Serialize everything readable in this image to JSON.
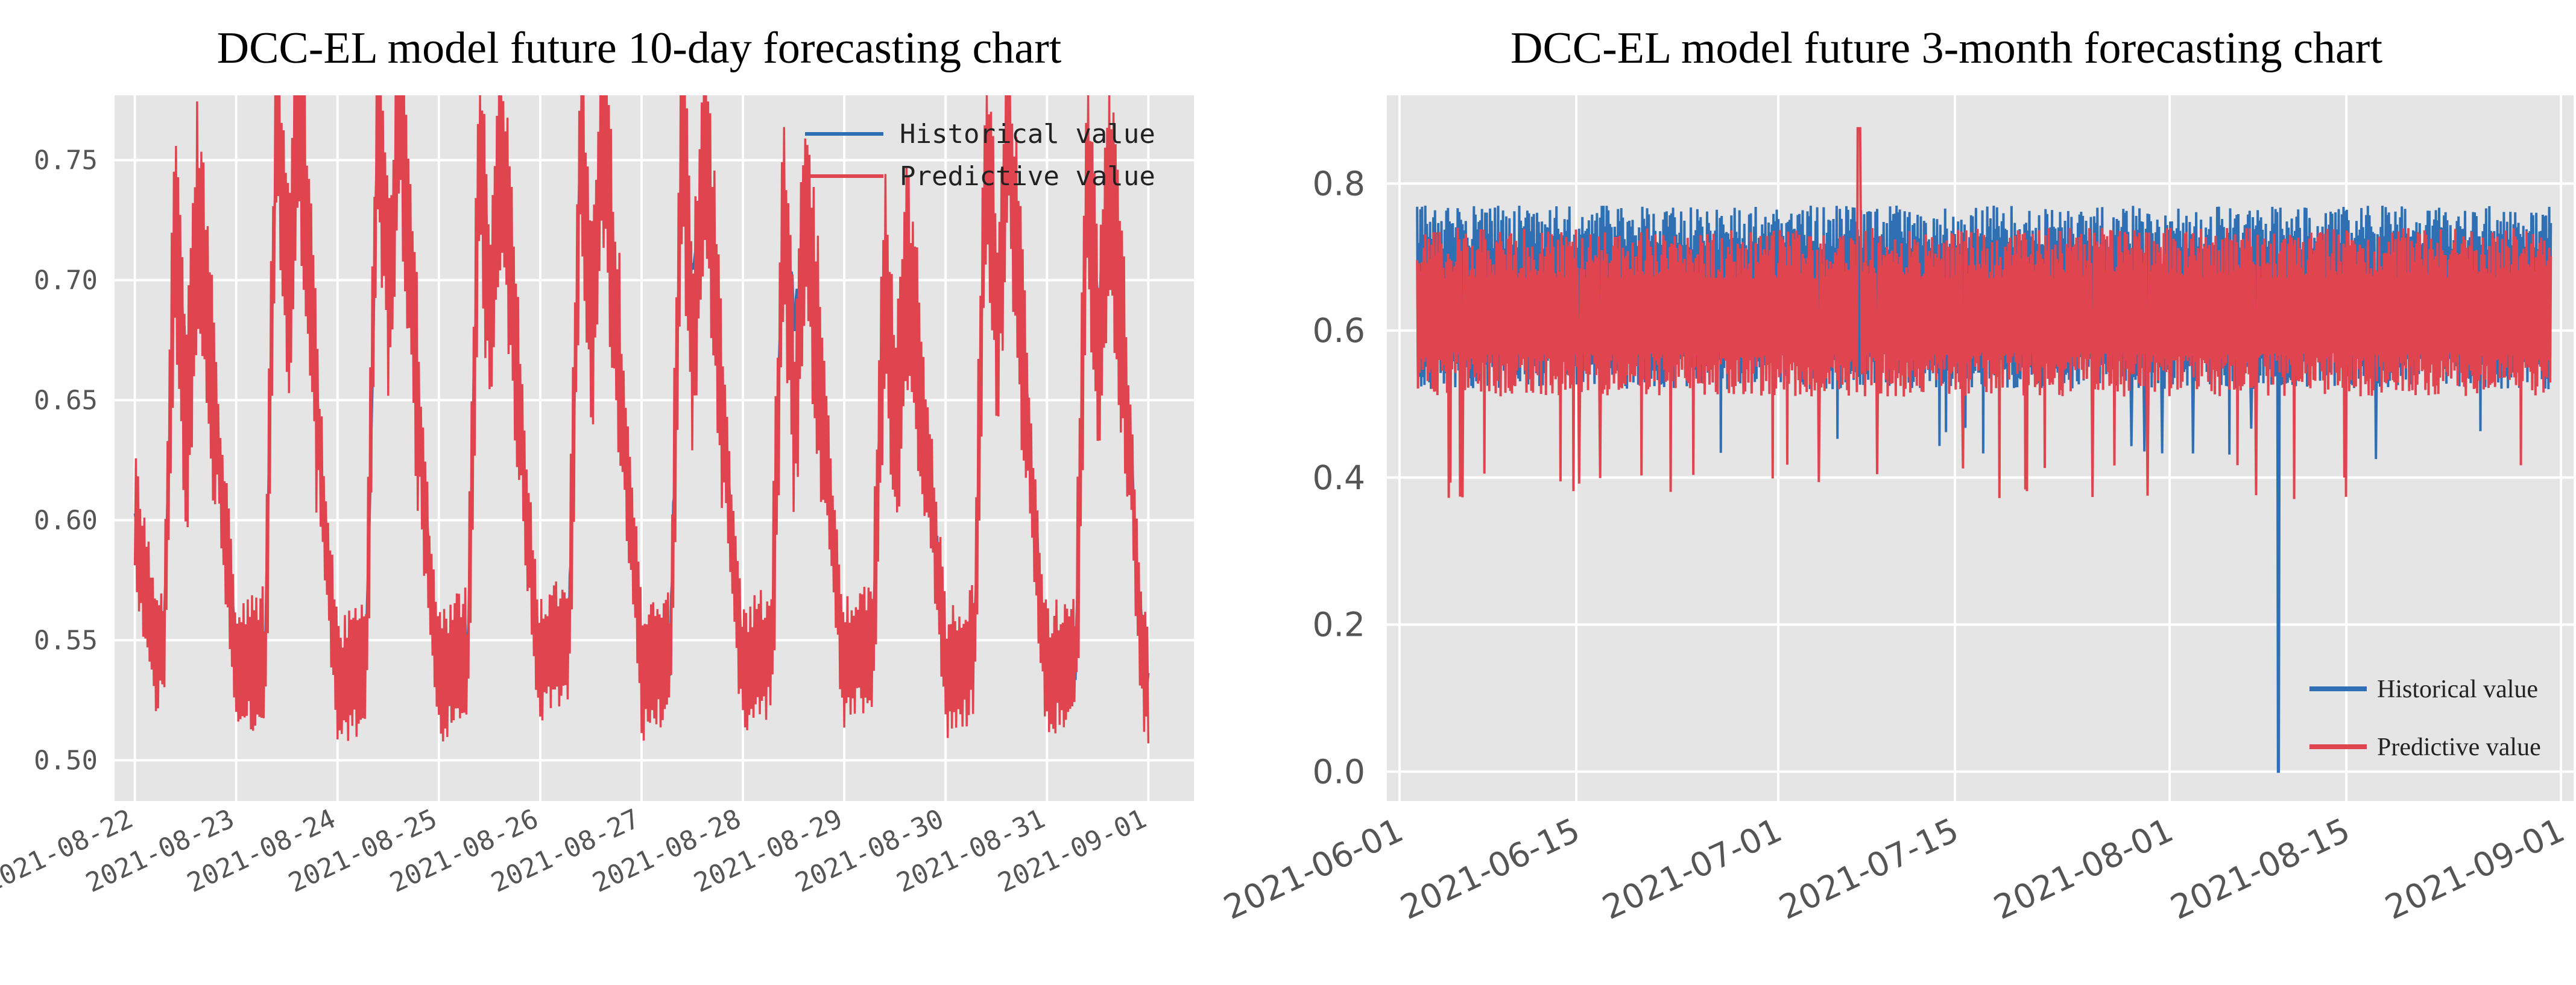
{
  "colors": {
    "historical": "#2f6fb4",
    "predictive": "#e0454f",
    "plot_bg": "#e5e5e5",
    "grid": "#ffffff",
    "tick_text": "#555555"
  },
  "chart_data": [
    {
      "type": "line",
      "title": "DCC-EL model future 10-day forecasting chart",
      "xlabel": "",
      "ylabel": "",
      "x_ticks": [
        "2021-08-22",
        "2021-08-23",
        "2021-08-24",
        "2021-08-25",
        "2021-08-26",
        "2021-08-27",
        "2021-08-28",
        "2021-08-29",
        "2021-08-30",
        "2021-08-31",
        "2021-09-01"
      ],
      "y_ticks": [
        "0.50",
        "0.55",
        "0.60",
        "0.65",
        "0.70",
        "0.75"
      ],
      "y_tick_values": [
        0.5,
        0.55,
        0.6,
        0.65,
        0.7,
        0.75
      ],
      "ylim": [
        0.483,
        0.777
      ],
      "xlim_days": [
        -0.2,
        10.45
      ],
      "grid": true,
      "legend_position": "top-right",
      "series": [
        {
          "name": "Historical value",
          "role": "historical"
        },
        {
          "name": "Predictive value",
          "role": "predictive"
        }
      ],
      "daily_pattern": {
        "base": [
          0.545,
          0.54,
          0.535,
          0.54,
          0.548,
          0.54,
          0.542,
          0.545,
          0.54,
          0.54
        ],
        "peak": [
          0.725,
          0.77,
          0.77,
          0.755,
          0.76,
          0.76,
          0.73,
          0.7,
          0.76,
          0.74
        ],
        "hist_dip": [
          0.66,
          0.705,
          0.705,
          0.7,
          0.695,
          0.7,
          0.685,
          0.65,
          0.69,
          0.69
        ],
        "pred_dip": [
          0.63,
          0.69,
          0.69,
          0.68,
          0.68,
          0.67,
          0.64,
          0.63,
          0.68,
          0.67
        ],
        "start_value": 0.6,
        "end_value": 0.535
      }
    },
    {
      "type": "line",
      "title": "DCC-EL model future 3-month forecasting chart",
      "xlabel": "",
      "ylabel": "",
      "x_ticks": [
        "2021-06-01",
        "2021-06-15",
        "2021-07-01",
        "2021-07-15",
        "2021-08-01",
        "2021-08-15",
        "2021-09-01"
      ],
      "x_tick_days": [
        0,
        14,
        30,
        44,
        61,
        75,
        92
      ],
      "y_ticks": [
        "0.0",
        "0.2",
        "0.4",
        "0.6",
        "0.8"
      ],
      "y_tick_values": [
        0.0,
        0.2,
        0.4,
        0.6,
        0.8
      ],
      "ylim": [
        -0.04,
        0.92
      ],
      "xlim_days": [
        -1,
        93
      ],
      "grid": true,
      "legend_position": "lower-right",
      "series": [
        {
          "name": "Historical value",
          "role": "historical"
        },
        {
          "name": "Predictive value",
          "role": "predictive"
        }
      ],
      "range": {
        "start_day": 1.4,
        "end_day": 91.2,
        "hist_low": 0.52,
        "hist_high": 0.77,
        "pred_low": 0.51,
        "pred_high": 0.74,
        "pred_spike": 0.875,
        "hist_outlier_min": 0.0,
        "pred_outlier_min": 0.37
      }
    }
  ]
}
